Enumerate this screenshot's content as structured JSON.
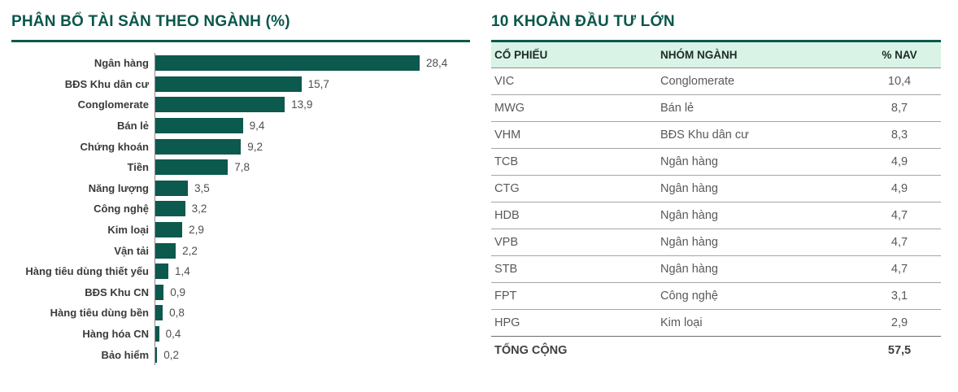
{
  "colors": {
    "teal": "#0c594e",
    "mint_header_bg": "#d9f3e6",
    "bar": "#0c594e",
    "row_line": "#a6a6a6",
    "cell_text": "#58595b",
    "label_text": "#3a3a3a"
  },
  "chart": {
    "title": "PHÂN BỔ TÀI SẢN THEO NGÀNH (%)"
  },
  "chart_data": {
    "type": "bar",
    "orientation": "horizontal",
    "title": "PHÂN BỔ TÀI SẢN THEO NGÀNH (%)",
    "xlabel": "",
    "ylabel": "",
    "xlim": [
      0,
      30
    ],
    "grid": false,
    "legend": false,
    "bar_color": "#0c594e",
    "categories": [
      "Ngân hàng",
      "BĐS Khu dân cư",
      "Conglomerate",
      "Bán lẻ",
      "Chứng khoán",
      "Tiền",
      "Năng lượng",
      "Công nghệ",
      "Kim loại",
      "Vận tải",
      "Hàng tiêu dùng thiết yếu",
      "BĐS Khu CN",
      "Hàng tiêu dùng bền",
      "Hàng hóa CN",
      "Bảo hiểm"
    ],
    "values": [
      28.4,
      15.7,
      13.9,
      9.4,
      9.2,
      7.8,
      3.5,
      3.2,
      2.9,
      2.2,
      1.4,
      0.9,
      0.8,
      0.4,
      0.2
    ],
    "value_labels": [
      "28,4",
      "15,7",
      "13,9",
      "9,4",
      "9,2",
      "7,8",
      "3,5",
      "3,2",
      "2,9",
      "2,2",
      "1,4",
      "0,9",
      "0,8",
      "0,4",
      "0,2"
    ]
  },
  "table": {
    "title": "10 KHOẢN ĐẦU TƯ LỚN",
    "columns": [
      "CỔ PHIẾU",
      "NHÓM NGÀNH",
      "% NAV"
    ],
    "rows": [
      {
        "ticker": "VIC",
        "sector": "Conglomerate",
        "nav": "10,4"
      },
      {
        "ticker": "MWG",
        "sector": "Bán lẻ",
        "nav": "8,7"
      },
      {
        "ticker": "VHM",
        "sector": "BĐS Khu dân cư",
        "nav": "8,3"
      },
      {
        "ticker": "TCB",
        "sector": "Ngân hàng",
        "nav": "4,9"
      },
      {
        "ticker": "CTG",
        "sector": "Ngân hàng",
        "nav": "4,9"
      },
      {
        "ticker": "HDB",
        "sector": "Ngân hàng",
        "nav": "4,7"
      },
      {
        "ticker": "VPB",
        "sector": "Ngân hàng",
        "nav": "4,7"
      },
      {
        "ticker": "STB",
        "sector": "Ngân hàng",
        "nav": "4,7"
      },
      {
        "ticker": "FPT",
        "sector": "Công nghệ",
        "nav": "3,1"
      },
      {
        "ticker": "HPG",
        "sector": "Kim loại",
        "nav": "2,9"
      }
    ],
    "total": {
      "label": "TỔNG CỘNG",
      "value": "57,5"
    }
  }
}
